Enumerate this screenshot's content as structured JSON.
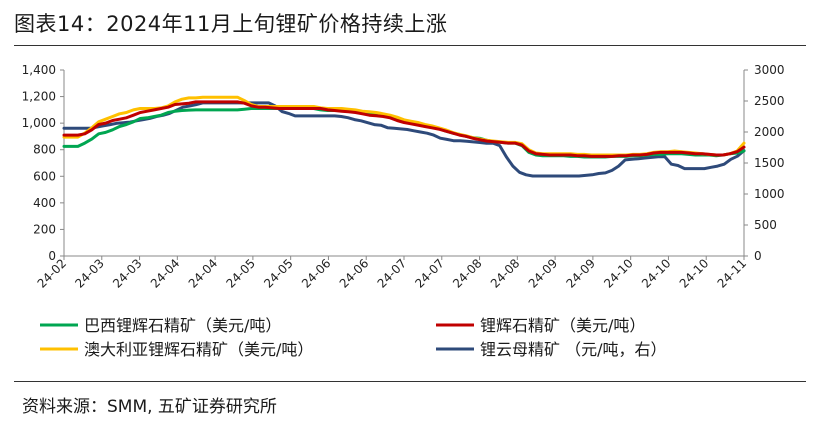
{
  "title": "图表14：2024年11月上旬锂矿价格持续上涨",
  "source": "资料来源：SMM, 五矿证券研究所",
  "chart_data": {
    "type": "line",
    "title": "图表14：2024年11月上旬锂矿价格持续上涨",
    "x_tick_labels": [
      "24-02",
      "24-03",
      "24-03",
      "24-04",
      "24-04",
      "24-05",
      "24-05",
      "24-06",
      "24-06",
      "24-07",
      "24-07",
      "24-08",
      "24-08",
      "24-09",
      "24-09",
      "24-10",
      "24-10",
      "24-10",
      "24-11"
    ],
    "y_left": {
      "min": 0,
      "max": 1400,
      "ticks": [
        0,
        200,
        400,
        600,
        800,
        1000,
        1200,
        1400
      ],
      "tick_labels": [
        "0",
        "200",
        "400",
        "600",
        "800",
        "1,000",
        "1,200",
        "1,400"
      ]
    },
    "y_right": {
      "min": 0,
      "max": 3000,
      "ticks": [
        0,
        500,
        1000,
        1500,
        2000,
        2500,
        3000
      ],
      "tick_labels": [
        "0",
        "500",
        "1000",
        "1500",
        "2000",
        "2500",
        "3000"
      ]
    },
    "grid": false,
    "legend_position": "bottom",
    "series": [
      {
        "name": "巴西锂辉石精矿（美元/吨）",
        "axis": "left",
        "color": "#00a651",
        "values": [
          825,
          825,
          825,
          850,
          880,
          920,
          930,
          950,
          975,
          990,
          1010,
          1035,
          1040,
          1050,
          1060,
          1080,
          1090,
          1095,
          1098,
          1100,
          1100,
          1100,
          1100,
          1100,
          1100,
          1100,
          1105,
          1110,
          1110,
          1110,
          1110,
          1110,
          1110,
          1110,
          1110,
          1110,
          1110,
          1100,
          1095,
          1095,
          1095,
          1095,
          1090,
          1080,
          1075,
          1065,
          1055,
          1045,
          1030,
          1010,
          1000,
          990,
          985,
          975,
          960,
          940,
          925,
          915,
          900,
          890,
          885,
          870,
          860,
          855,
          850,
          850,
          830,
          780,
          760,
          755,
          755,
          755,
          755,
          750,
          750,
          745,
          745,
          745,
          745,
          750,
          750,
          750,
          755,
          755,
          760,
          765,
          765,
          770,
          770,
          770,
          765,
          760,
          760,
          760,
          755,
          760,
          770,
          775,
          790
        ]
      },
      {
        "name": "锂辉石精矿（美元/吨）",
        "axis": "left",
        "color": "#c00000",
        "values": [
          910,
          910,
          910,
          920,
          950,
          990,
          1000,
          1020,
          1030,
          1040,
          1060,
          1080,
          1090,
          1100,
          1110,
          1120,
          1140,
          1145,
          1150,
          1160,
          1160,
          1160,
          1160,
          1160,
          1160,
          1160,
          1150,
          1130,
          1120,
          1120,
          1115,
          1110,
          1110,
          1110,
          1110,
          1110,
          1110,
          1110,
          1100,
          1095,
          1090,
          1085,
          1080,
          1070,
          1060,
          1055,
          1050,
          1040,
          1020,
          1005,
          995,
          985,
          975,
          965,
          955,
          940,
          925,
          910,
          900,
          885,
          875,
          865,
          860,
          855,
          850,
          850,
          835,
          790,
          770,
          765,
          760,
          760,
          760,
          760,
          755,
          755,
          750,
          750,
          750,
          750,
          755,
          755,
          760,
          760,
          765,
          775,
          780,
          780,
          780,
          780,
          775,
          770,
          770,
          765,
          760,
          760,
          770,
          785,
          820
        ]
      },
      {
        "name": "澳大利亚锂辉石精矿（美元/吨）",
        "axis": "left",
        "color": "#ffc000",
        "values": [
          895,
          895,
          895,
          925,
          965,
          1010,
          1030,
          1050,
          1070,
          1080,
          1100,
          1110,
          1110,
          1110,
          1115,
          1130,
          1160,
          1180,
          1190,
          1190,
          1195,
          1195,
          1195,
          1195,
          1195,
          1195,
          1170,
          1140,
          1125,
          1125,
          1125,
          1125,
          1125,
          1125,
          1125,
          1125,
          1125,
          1115,
          1110,
          1110,
          1110,
          1105,
          1100,
          1090,
          1085,
          1080,
          1070,
          1060,
          1045,
          1025,
          1015,
          1005,
          990,
          980,
          965,
          950,
          930,
          915,
          905,
          890,
          880,
          870,
          865,
          860,
          855,
          855,
          845,
          800,
          775,
          770,
          770,
          770,
          770,
          770,
          765,
          765,
          760,
          760,
          760,
          760,
          760,
          760,
          765,
          765,
          770,
          780,
          785,
          785,
          790,
          785,
          780,
          775,
          770,
          765,
          760,
          760,
          770,
          790,
          850
        ]
      },
      {
        "name": "锂云母精矿 （元/吨，右）",
        "axis": "right",
        "color": "#2e4a7a",
        "values": [
          2060,
          2060,
          2060,
          2060,
          2060,
          2080,
          2100,
          2120,
          2140,
          2150,
          2160,
          2180,
          2200,
          2220,
          2250,
          2270,
          2300,
          2350,
          2400,
          2420,
          2440,
          2470,
          2470,
          2470,
          2470,
          2470,
          2470,
          2470,
          2470,
          2470,
          2470,
          2470,
          2420,
          2330,
          2300,
          2260,
          2260,
          2260,
          2260,
          2260,
          2260,
          2260,
          2250,
          2230,
          2200,
          2180,
          2150,
          2120,
          2110,
          2070,
          2060,
          2050,
          2040,
          2020,
          2000,
          1980,
          1950,
          1900,
          1880,
          1860,
          1860,
          1850,
          1840,
          1830,
          1820,
          1820,
          1780,
          1600,
          1450,
          1350,
          1310,
          1290,
          1290,
          1290,
          1290,
          1290,
          1290,
          1290,
          1290,
          1300,
          1310,
          1330,
          1340,
          1380,
          1450,
          1550,
          1560,
          1570,
          1580,
          1590,
          1600,
          1600,
          1480,
          1460,
          1410,
          1410,
          1410,
          1410,
          1430,
          1450,
          1480,
          1560,
          1610,
          1700
        ]
      }
    ]
  }
}
